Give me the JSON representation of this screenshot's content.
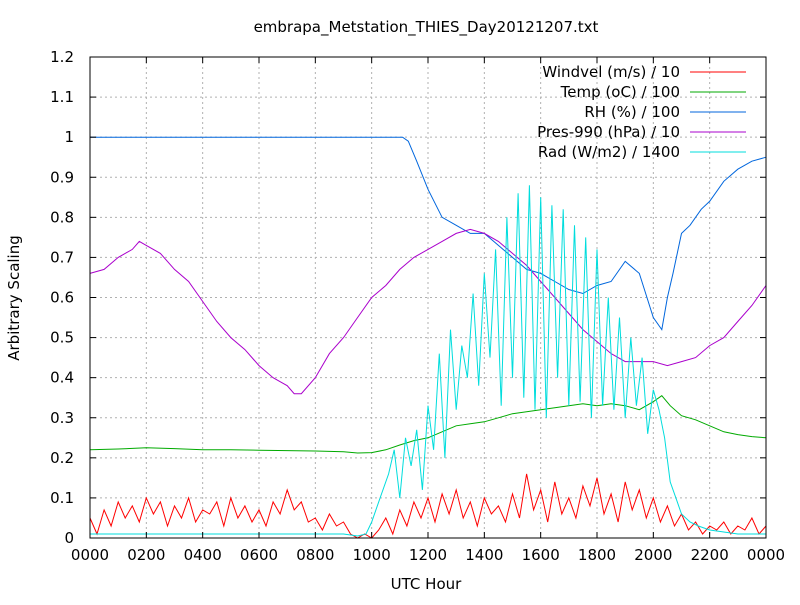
{
  "chart_data": {
    "type": "line",
    "title": "embrapa_Metstation_THIES_Day20121207.txt",
    "xlabel": "UTC Hour",
    "ylabel": "Arbitrary Scaling",
    "xlim": [
      0,
      24
    ],
    "ylim": [
      0,
      1.2
    ],
    "x_ticks": [
      0,
      2,
      4,
      6,
      8,
      10,
      12,
      14,
      16,
      18,
      20,
      22,
      24
    ],
    "x_tick_labels": [
      "0000",
      "0200",
      "0400",
      "0600",
      "0800",
      "1000",
      "1200",
      "1400",
      "1600",
      "1800",
      "2000",
      "2200",
      "0000"
    ],
    "y_ticks": [
      0,
      0.1,
      0.2,
      0.3,
      0.4,
      0.5,
      0.6,
      0.7,
      0.8,
      0.9,
      1,
      1.1,
      1.2
    ],
    "y_tick_labels": [
      "0",
      "0.1",
      "0.2",
      "0.3",
      "0.4",
      "0.5",
      "0.6",
      "0.7",
      "0.8",
      "0.9",
      "1",
      "1.1",
      "1.2"
    ],
    "grid": true,
    "legend_position": "top-right",
    "series": [
      {
        "name": "Windvel (m/s) / 10",
        "color": "#ff0000",
        "x": [
          0.0,
          0.25,
          0.5,
          0.75,
          1.0,
          1.25,
          1.5,
          1.75,
          2.0,
          2.25,
          2.5,
          2.75,
          3.0,
          3.25,
          3.5,
          3.75,
          4.0,
          4.25,
          4.5,
          4.75,
          5.0,
          5.25,
          5.5,
          5.75,
          6.0,
          6.25,
          6.5,
          6.75,
          7.0,
          7.25,
          7.5,
          7.75,
          8.0,
          8.25,
          8.5,
          8.75,
          9.0,
          9.25,
          9.5,
          9.75,
          10.0,
          10.25,
          10.5,
          10.75,
          11.0,
          11.25,
          11.5,
          11.75,
          12.0,
          12.25,
          12.5,
          12.75,
          13.0,
          13.25,
          13.5,
          13.75,
          14.0,
          14.25,
          14.5,
          14.75,
          15.0,
          15.25,
          15.5,
          15.75,
          16.0,
          16.25,
          16.5,
          16.75,
          17.0,
          17.25,
          17.5,
          17.75,
          18.0,
          18.25,
          18.5,
          18.75,
          19.0,
          19.25,
          19.5,
          19.75,
          20.0,
          20.25,
          20.5,
          20.75,
          21.0,
          21.25,
          21.5,
          21.75,
          22.0,
          22.25,
          22.5,
          22.75,
          23.0,
          23.25,
          23.5,
          23.75,
          24.0
        ],
        "values": [
          0.05,
          0.01,
          0.07,
          0.03,
          0.09,
          0.05,
          0.08,
          0.04,
          0.1,
          0.06,
          0.09,
          0.03,
          0.08,
          0.05,
          0.1,
          0.04,
          0.07,
          0.06,
          0.09,
          0.03,
          0.1,
          0.05,
          0.08,
          0.04,
          0.07,
          0.03,
          0.09,
          0.06,
          0.12,
          0.07,
          0.09,
          0.04,
          0.05,
          0.02,
          0.06,
          0.03,
          0.04,
          0.01,
          0.0,
          0.01,
          0.0,
          0.02,
          0.05,
          0.01,
          0.07,
          0.03,
          0.09,
          0.05,
          0.1,
          0.04,
          0.11,
          0.06,
          0.12,
          0.05,
          0.09,
          0.03,
          0.1,
          0.06,
          0.08,
          0.04,
          0.11,
          0.05,
          0.16,
          0.07,
          0.12,
          0.04,
          0.14,
          0.06,
          0.1,
          0.05,
          0.13,
          0.08,
          0.15,
          0.06,
          0.11,
          0.04,
          0.14,
          0.07,
          0.12,
          0.05,
          0.1,
          0.04,
          0.08,
          0.03,
          0.06,
          0.02,
          0.04,
          0.01,
          0.03,
          0.02,
          0.04,
          0.01,
          0.03,
          0.02,
          0.05,
          0.01,
          0.03
        ]
      },
      {
        "name": "Temp (oC) / 100",
        "color": "#00aa00",
        "x": [
          0,
          1,
          2,
          3,
          4,
          5,
          6,
          7,
          8,
          9,
          9.5,
          10,
          10.5,
          11,
          11.5,
          12,
          12.5,
          13,
          13.5,
          14,
          14.5,
          15,
          15.5,
          16,
          16.5,
          17,
          17.5,
          18,
          18.5,
          19,
          19.5,
          20,
          20.3,
          20.6,
          21,
          21.5,
          22,
          22.5,
          23,
          23.5,
          24
        ],
        "values": [
          0.22,
          0.222,
          0.225,
          0.223,
          0.22,
          0.22,
          0.219,
          0.218,
          0.217,
          0.215,
          0.212,
          0.213,
          0.22,
          0.232,
          0.243,
          0.25,
          0.265,
          0.28,
          0.285,
          0.29,
          0.3,
          0.31,
          0.315,
          0.32,
          0.325,
          0.33,
          0.335,
          0.33,
          0.335,
          0.33,
          0.32,
          0.34,
          0.355,
          0.33,
          0.305,
          0.295,
          0.28,
          0.265,
          0.258,
          0.253,
          0.25
        ]
      },
      {
        "name": "RH (%) / 100",
        "color": "#0066dd",
        "x": [
          0,
          1,
          2,
          3,
          4,
          5,
          6,
          7,
          8,
          9,
          10,
          11,
          11.1,
          11.3,
          11.6,
          12,
          12.5,
          13,
          13.5,
          14,
          14.5,
          15,
          15.5,
          16,
          16.5,
          17,
          17.5,
          18,
          18.5,
          19,
          19.5,
          20,
          20.3,
          20.5,
          20.7,
          21,
          21.3,
          21.7,
          22,
          22.5,
          23,
          23.5,
          24
        ],
        "values": [
          1,
          1,
          1,
          1,
          1,
          1,
          1,
          1,
          1,
          1,
          1,
          1,
          1,
          0.99,
          0.94,
          0.87,
          0.8,
          0.78,
          0.76,
          0.76,
          0.73,
          0.7,
          0.67,
          0.66,
          0.64,
          0.62,
          0.61,
          0.63,
          0.64,
          0.69,
          0.66,
          0.55,
          0.52,
          0.6,
          0.66,
          0.76,
          0.78,
          0.82,
          0.84,
          0.89,
          0.92,
          0.94,
          0.95
        ]
      },
      {
        "name": "Pres-990 (hPa) / 10",
        "color": "#aa00cc",
        "x": [
          0,
          0.5,
          1,
          1.5,
          1.75,
          2,
          2.5,
          3,
          3.5,
          4,
          4.5,
          5,
          5.5,
          6,
          6.5,
          7,
          7.25,
          7.5,
          8,
          8.5,
          9,
          9.5,
          10,
          10.5,
          11,
          11.5,
          12,
          12.5,
          13,
          13.5,
          14,
          14.5,
          15,
          15.5,
          16,
          16.5,
          17,
          17.5,
          18,
          18.5,
          19,
          19.5,
          20,
          20.5,
          21,
          21.5,
          22,
          22.5,
          23,
          23.5,
          24
        ],
        "values": [
          0.66,
          0.67,
          0.7,
          0.72,
          0.74,
          0.73,
          0.71,
          0.67,
          0.64,
          0.59,
          0.54,
          0.5,
          0.47,
          0.43,
          0.4,
          0.38,
          0.36,
          0.36,
          0.4,
          0.46,
          0.5,
          0.55,
          0.6,
          0.63,
          0.67,
          0.7,
          0.72,
          0.74,
          0.76,
          0.77,
          0.76,
          0.74,
          0.71,
          0.68,
          0.64,
          0.6,
          0.56,
          0.52,
          0.49,
          0.46,
          0.44,
          0.44,
          0.44,
          0.43,
          0.44,
          0.45,
          0.48,
          0.5,
          0.54,
          0.58,
          0.63
        ]
      },
      {
        "name": "Rad (W/m2) / 1400",
        "color": "#00dddd",
        "x": [
          0,
          2,
          4,
          6,
          8,
          9,
          9.5,
          9.8,
          10,
          10.3,
          10.6,
          10.8,
          11,
          11.2,
          11.4,
          11.6,
          11.8,
          12,
          12.2,
          12.4,
          12.6,
          12.8,
          13,
          13.2,
          13.4,
          13.6,
          13.8,
          14,
          14.2,
          14.4,
          14.6,
          14.8,
          15,
          15.2,
          15.4,
          15.6,
          15.8,
          16,
          16.2,
          16.4,
          16.6,
          16.8,
          17,
          17.2,
          17.4,
          17.6,
          17.8,
          18,
          18.2,
          18.4,
          18.6,
          18.8,
          19,
          19.2,
          19.4,
          19.6,
          19.8,
          20,
          20.2,
          20.4,
          20.6,
          20.8,
          21,
          21.3,
          21.6,
          22,
          22.5,
          23,
          23.5,
          24
        ],
        "values": [
          0.01,
          0.01,
          0.01,
          0.01,
          0.01,
          0.01,
          0.005,
          0.01,
          0.04,
          0.1,
          0.16,
          0.22,
          0.1,
          0.25,
          0.18,
          0.27,
          0.12,
          0.33,
          0.22,
          0.46,
          0.2,
          0.52,
          0.32,
          0.48,
          0.4,
          0.61,
          0.38,
          0.66,
          0.45,
          0.72,
          0.33,
          0.8,
          0.4,
          0.86,
          0.35,
          0.88,
          0.32,
          0.85,
          0.3,
          0.83,
          0.4,
          0.82,
          0.33,
          0.78,
          0.34,
          0.75,
          0.3,
          0.72,
          0.33,
          0.6,
          0.32,
          0.55,
          0.3,
          0.5,
          0.33,
          0.45,
          0.26,
          0.37,
          0.32,
          0.25,
          0.14,
          0.1,
          0.06,
          0.04,
          0.03,
          0.02,
          0.015,
          0.01,
          0.01,
          0.01
        ]
      }
    ]
  }
}
